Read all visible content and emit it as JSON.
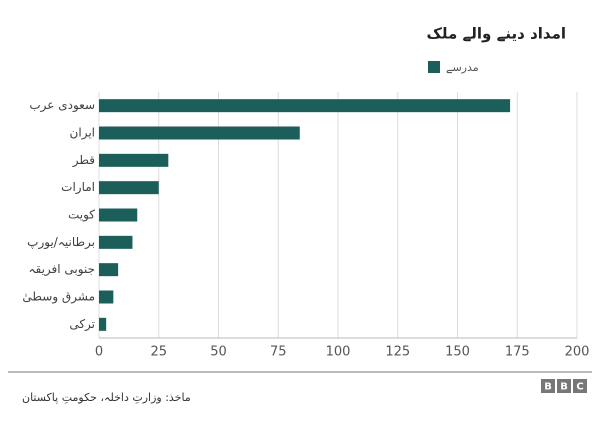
{
  "chart_data": {
    "type": "bar",
    "orientation": "horizontal",
    "title": "امداد دینے والے ملک",
    "categories": [
      "سعودی عرب",
      "ایران",
      "قطر",
      "امارات",
      "کویت",
      "برطانیہ/یورپ",
      "جنوبی افریقہ",
      "مشرق وسطیٰ",
      "ترکی"
    ],
    "series": [
      {
        "name": "مدرسے",
        "color": "#1b5e5a",
        "values": [
          172,
          84,
          29,
          25,
          16,
          14,
          8,
          6,
          3
        ]
      }
    ],
    "xlim": [
      0,
      200
    ],
    "xticks": [
      0,
      25,
      50,
      75,
      100,
      125,
      150,
      175,
      200
    ],
    "grid": true,
    "source": "ماخذ: وزارتِ داخلہ، حکومتِ پاکستان",
    "logo": [
      "B",
      "B",
      "C"
    ]
  }
}
